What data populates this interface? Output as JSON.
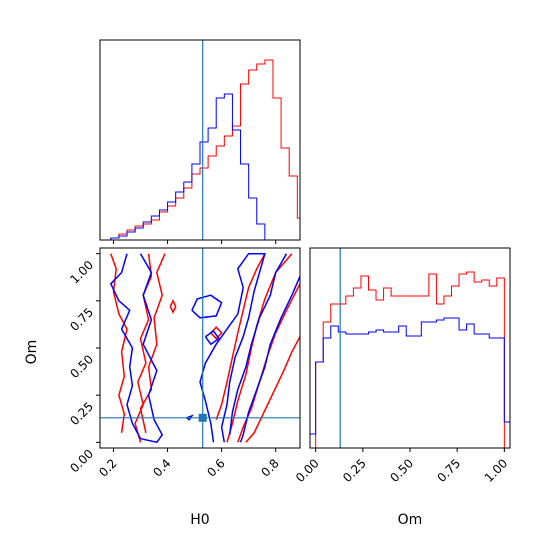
{
  "chart_data": {
    "type": "corner",
    "truth": {
      "H0": 0.53,
      "Om": 0.13
    },
    "colors": {
      "series_red": "#ff0000",
      "series_blue": "#0000ff",
      "truth": "#1f77b4"
    },
    "axes": {
      "H0": {
        "label": "H0",
        "range": [
          0.15,
          0.89
        ],
        "ticks": [
          0.2,
          0.4,
          0.6,
          0.8
        ],
        "tick_labels": [
          "0.2",
          "0.4",
          "0.6",
          "0.8"
        ]
      },
      "Om": {
        "label": "Om",
        "range": [
          -0.03,
          1.03
        ],
        "ticks": [
          0.0,
          0.25,
          0.5,
          0.75,
          1.0
        ],
        "tick_labels": [
          "0.00",
          "0.25",
          "0.50",
          "0.75",
          "1.00"
        ]
      }
    },
    "hist_H0": {
      "bin_edges": [
        0.19,
        0.22,
        0.25,
        0.28,
        0.31,
        0.34,
        0.37,
        0.4,
        0.43,
        0.46,
        0.49,
        0.52,
        0.55,
        0.58,
        0.61,
        0.64,
        0.67,
        0.7,
        0.73,
        0.76,
        0.79,
        0.82,
        0.85,
        0.88,
        0.89
      ],
      "series": [
        {
          "color": "red",
          "counts": [
            0.01,
            0.03,
            0.05,
            0.07,
            0.08,
            0.1,
            0.14,
            0.17,
            0.21,
            0.26,
            0.33,
            0.36,
            0.42,
            0.47,
            0.52,
            0.57,
            0.78,
            0.85,
            0.88,
            0.9,
            0.71,
            0.46,
            0.32,
            0.11
          ]
        },
        {
          "color": "blue",
          "counts": [
            0.01,
            0.02,
            0.04,
            0.06,
            0.09,
            0.12,
            0.15,
            0.19,
            0.24,
            0.29,
            0.38,
            0.49,
            0.56,
            0.71,
            0.73,
            0.55,
            0.38,
            0.21,
            0.08,
            0.0,
            0.0,
            0.0,
            0.0,
            0.0
          ]
        }
      ],
      "ylim": [
        0,
        1.0
      ]
    },
    "hist_Om": {
      "bin_edges": [
        -0.03,
        0.0,
        0.04,
        0.08,
        0.12,
        0.16,
        0.2,
        0.24,
        0.28,
        0.32,
        0.36,
        0.4,
        0.44,
        0.48,
        0.52,
        0.56,
        0.6,
        0.64,
        0.68,
        0.72,
        0.76,
        0.8,
        0.84,
        0.88,
        0.92,
        0.96,
        1.0,
        1.03
      ],
      "series": [
        {
          "color": "red",
          "counts": [
            0.0,
            0.43,
            0.63,
            0.72,
            0.72,
            0.76,
            0.8,
            0.86,
            0.79,
            0.74,
            0.8,
            0.76,
            0.76,
            0.76,
            0.76,
            0.76,
            0.87,
            0.72,
            0.76,
            0.81,
            0.87,
            0.88,
            0.83,
            0.84,
            0.81,
            0.85,
            0.0
          ]
        },
        {
          "color": "blue",
          "counts": [
            0.07,
            0.43,
            0.55,
            0.61,
            0.58,
            0.57,
            0.57,
            0.57,
            0.58,
            0.59,
            0.58,
            0.58,
            0.61,
            0.56,
            0.56,
            0.63,
            0.63,
            0.64,
            0.65,
            0.65,
            0.59,
            0.62,
            0.57,
            0.57,
            0.55,
            0.55,
            0.13
          ]
        }
      ],
      "ylim": [
        0,
        1.0
      ]
    },
    "contours": [
      {
        "color": "red",
        "paths": [
          [
            [
              0.19,
              1.0
            ],
            [
              0.21,
              0.92
            ],
            [
              0.2,
              0.8
            ],
            [
              0.22,
              0.68
            ],
            [
              0.25,
              0.6
            ],
            [
              0.23,
              0.48
            ],
            [
              0.24,
              0.35
            ],
            [
              0.22,
              0.25
            ],
            [
              0.24,
              0.15
            ],
            [
              0.23,
              0.05
            ]
          ],
          [
            [
              0.33,
              1.0
            ],
            [
              0.34,
              0.88
            ],
            [
              0.31,
              0.78
            ],
            [
              0.33,
              0.65
            ],
            [
              0.3,
              0.55
            ],
            [
              0.32,
              0.42
            ],
            [
              0.29,
              0.32
            ],
            [
              0.31,
              0.2
            ],
            [
              0.28,
              0.1
            ],
            [
              0.3,
              0.0
            ]
          ],
          [
            [
              0.39,
              1.0
            ],
            [
              0.36,
              0.9
            ],
            [
              0.38,
              0.78
            ],
            [
              0.35,
              0.66
            ],
            [
              0.36,
              0.52
            ],
            [
              0.33,
              0.4
            ],
            [
              0.34,
              0.28
            ],
            [
              0.3,
              0.18
            ],
            [
              0.32,
              0.05
            ]
          ],
          [
            [
              0.58,
              0.12
            ],
            [
              0.6,
              0.2
            ],
            [
              0.62,
              0.32
            ],
            [
              0.64,
              0.45
            ],
            [
              0.66,
              0.58
            ],
            [
              0.68,
              0.7
            ],
            [
              0.7,
              0.82
            ],
            [
              0.73,
              0.92
            ],
            [
              0.76,
              1.0
            ]
          ],
          [
            [
              0.62,
              0.0
            ],
            [
              0.64,
              0.1
            ],
            [
              0.66,
              0.22
            ],
            [
              0.69,
              0.36
            ],
            [
              0.71,
              0.5
            ],
            [
              0.73,
              0.62
            ],
            [
              0.76,
              0.76
            ],
            [
              0.8,
              0.9
            ],
            [
              0.86,
              1.0
            ]
          ],
          [
            [
              0.66,
              0.0
            ],
            [
              0.68,
              0.08
            ],
            [
              0.71,
              0.18
            ],
            [
              0.74,
              0.32
            ],
            [
              0.77,
              0.46
            ],
            [
              0.8,
              0.58
            ],
            [
              0.84,
              0.7
            ],
            [
              0.89,
              0.84
            ]
          ],
          [
            [
              0.69,
              0.0
            ],
            [
              0.72,
              0.05
            ],
            [
              0.75,
              0.14
            ],
            [
              0.79,
              0.26
            ],
            [
              0.83,
              0.38
            ],
            [
              0.86,
              0.48
            ],
            [
              0.89,
              0.56
            ]
          ],
          [
            [
              0.41,
              0.72
            ],
            [
              0.42,
              0.69
            ],
            [
              0.43,
              0.72
            ],
            [
              0.42,
              0.75
            ],
            [
              0.41,
              0.72
            ]
          ],
          [
            [
              0.56,
              0.58
            ],
            [
              0.58,
              0.55
            ],
            [
              0.6,
              0.58
            ],
            [
              0.58,
              0.61
            ],
            [
              0.56,
              0.58
            ]
          ]
        ]
      },
      {
        "color": "blue",
        "paths": [
          [
            [
              0.25,
              1.0
            ],
            [
              0.23,
              0.9
            ],
            [
              0.19,
              0.84
            ],
            [
              0.22,
              0.75
            ],
            [
              0.26,
              0.7
            ],
            [
              0.23,
              0.6
            ],
            [
              0.27,
              0.5
            ],
            [
              0.26,
              0.4
            ],
            [
              0.27,
              0.3
            ],
            [
              0.25,
              0.2
            ],
            [
              0.27,
              0.1
            ],
            [
              0.3,
              0.02
            ],
            [
              0.36,
              0.0
            ],
            [
              0.38,
              0.04
            ],
            [
              0.35,
              0.12
            ],
            [
              0.33,
              0.25
            ],
            [
              0.36,
              0.38
            ],
            [
              0.31,
              0.52
            ],
            [
              0.34,
              0.65
            ],
            [
              0.31,
              0.78
            ],
            [
              0.34,
              0.9
            ],
            [
              0.3,
              1.0
            ]
          ],
          [
            [
              0.57,
              0.0
            ],
            [
              0.56,
              0.1
            ],
            [
              0.54,
              0.22
            ],
            [
              0.52,
              0.32
            ],
            [
              0.54,
              0.42
            ],
            [
              0.58,
              0.52
            ],
            [
              0.62,
              0.6
            ],
            [
              0.66,
              0.68
            ],
            [
              0.68,
              0.82
            ],
            [
              0.66,
              0.92
            ],
            [
              0.7,
              1.0
            ],
            [
              0.76,
              1.0
            ],
            [
              0.74,
              0.9
            ],
            [
              0.72,
              0.8
            ],
            [
              0.7,
              0.66
            ],
            [
              0.68,
              0.56
            ],
            [
              0.65,
              0.45
            ],
            [
              0.63,
              0.32
            ],
            [
              0.62,
              0.2
            ],
            [
              0.6,
              0.08
            ],
            [
              0.61,
              0.0
            ]
          ],
          [
            [
              0.84,
              1.0
            ],
            [
              0.8,
              0.9
            ],
            [
              0.78,
              0.78
            ],
            [
              0.74,
              0.66
            ],
            [
              0.71,
              0.52
            ],
            [
              0.69,
              0.4
            ],
            [
              0.66,
              0.28
            ],
            [
              0.64,
              0.16
            ],
            [
              0.63,
              0.04
            ]
          ],
          [
            [
              0.89,
              0.88
            ],
            [
              0.86,
              0.78
            ],
            [
              0.82,
              0.66
            ],
            [
              0.78,
              0.52
            ],
            [
              0.76,
              0.4
            ],
            [
              0.73,
              0.28
            ],
            [
              0.7,
              0.16
            ],
            [
              0.68,
              0.04
            ],
            [
              0.67,
              0.0
            ]
          ],
          [
            [
              0.49,
              0.7
            ],
            [
              0.52,
              0.66
            ],
            [
              0.58,
              0.67
            ],
            [
              0.6,
              0.74
            ],
            [
              0.56,
              0.78
            ],
            [
              0.51,
              0.76
            ],
            [
              0.49,
              0.7
            ]
          ],
          [
            [
              0.54,
              0.56
            ],
            [
              0.56,
              0.52
            ],
            [
              0.59,
              0.55
            ],
            [
              0.57,
              0.59
            ],
            [
              0.54,
              0.56
            ]
          ],
          [
            [
              0.47,
              0.13
            ],
            [
              0.48,
              0.12
            ],
            [
              0.49,
              0.14
            ],
            [
              0.47,
              0.13
            ]
          ]
        ]
      }
    ]
  }
}
